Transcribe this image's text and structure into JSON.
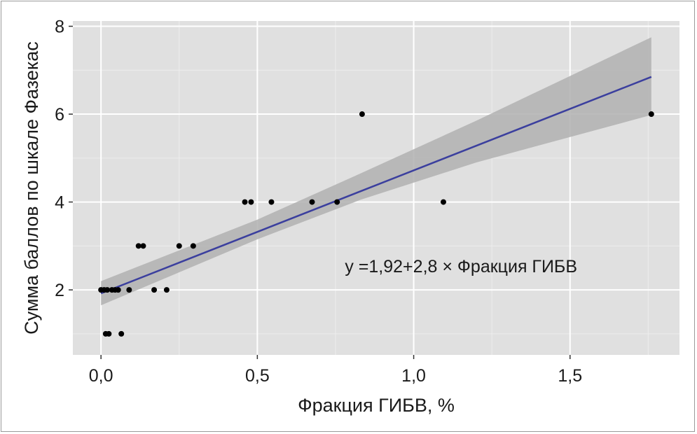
{
  "chart_data": {
    "type": "scatter",
    "xlabel": "Фракция ГИБВ, %",
    "ylabel": "Сумма баллов по шкале Фазекас",
    "xlim": [
      -0.09,
      1.85
    ],
    "ylim": [
      0.52,
      8.12
    ],
    "x_ticks": [
      0.0,
      0.5,
      1.0,
      1.5
    ],
    "x_tick_labels": [
      "0,0",
      "0,5",
      "1,0",
      "1,5"
    ],
    "x_minor": [
      0.25,
      0.75,
      1.25,
      1.75
    ],
    "y_ticks": [
      2,
      4,
      6,
      8
    ],
    "y_tick_labels": [
      "2",
      "4",
      "6",
      "8"
    ],
    "y_minor": [
      1,
      3,
      5,
      7
    ],
    "grid": true,
    "background": "#e0e0e0",
    "points": [
      {
        "x": 0.0,
        "y": 2
      },
      {
        "x": 0.01,
        "y": 2
      },
      {
        "x": 0.02,
        "y": 2
      },
      {
        "x": 0.035,
        "y": 2
      },
      {
        "x": 0.045,
        "y": 2
      },
      {
        "x": 0.055,
        "y": 2
      },
      {
        "x": 0.09,
        "y": 2
      },
      {
        "x": 0.17,
        "y": 2
      },
      {
        "x": 0.21,
        "y": 2
      },
      {
        "x": 0.015,
        "y": 1
      },
      {
        "x": 0.025,
        "y": 1
      },
      {
        "x": 0.065,
        "y": 1
      },
      {
        "x": 0.12,
        "y": 3
      },
      {
        "x": 0.135,
        "y": 3
      },
      {
        "x": 0.25,
        "y": 3
      },
      {
        "x": 0.295,
        "y": 3
      },
      {
        "x": 0.46,
        "y": 4
      },
      {
        "x": 0.48,
        "y": 4
      },
      {
        "x": 0.545,
        "y": 4
      },
      {
        "x": 0.675,
        "y": 4
      },
      {
        "x": 0.755,
        "y": 4
      },
      {
        "x": 1.095,
        "y": 4
      },
      {
        "x": 0.835,
        "y": 6
      },
      {
        "x": 1.76,
        "y": 6
      }
    ],
    "fit": {
      "intercept": 1.92,
      "slope": 2.8,
      "color": "#3b3f9e",
      "x_range": [
        0.0,
        1.76
      ],
      "ci": [
        {
          "x": 0.0,
          "lo": 1.65,
          "hi": 2.2
        },
        {
          "x": 0.5,
          "lo": 3.15,
          "hi": 3.6
        },
        {
          "x": 0.83,
          "lo": 4.05,
          "hi": 4.65
        },
        {
          "x": 1.2,
          "lo": 4.9,
          "hi": 5.85
        },
        {
          "x": 1.76,
          "lo": 5.98,
          "hi": 7.75
        }
      ],
      "ci_color": "#b0b0b0"
    },
    "annotation": {
      "text": "y =1,92+2,8 × Фракция ГИБВ",
      "x": 0.78,
      "y": 2.4
    }
  }
}
